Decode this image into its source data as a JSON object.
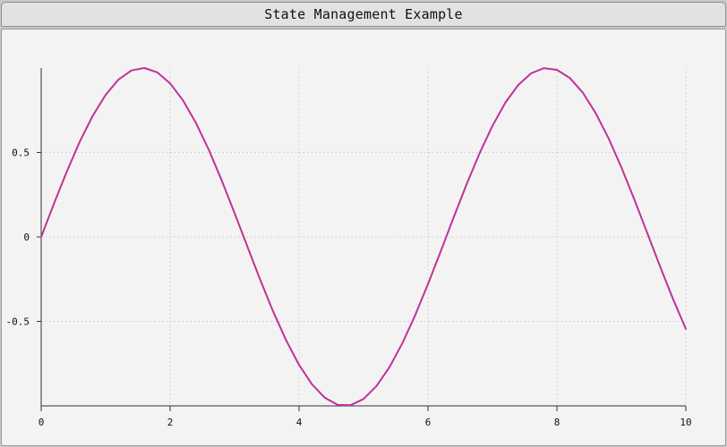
{
  "window": {
    "title": "State Management Example"
  },
  "chart_data": {
    "type": "line",
    "title": "",
    "xlabel": "",
    "ylabel": "",
    "xlim": [
      0,
      10
    ],
    "ylim": [
      -1,
      1
    ],
    "xticks": [
      0,
      2,
      4,
      6,
      8,
      10
    ],
    "xtick_labels": [
      "0",
      "2",
      "4",
      "6",
      "8",
      "10"
    ],
    "yticks": [
      -0.5,
      0,
      0.5
    ],
    "ytick_labels": [
      "-0.5",
      "0",
      "0.5"
    ],
    "grid": true,
    "series": [
      {
        "color": "#c03296",
        "x": [
          0,
          0.2,
          0.4,
          0.6,
          0.8,
          1.0,
          1.2,
          1.4,
          1.6,
          1.8,
          2.0,
          2.2,
          2.4,
          2.6,
          2.8,
          3.0,
          3.2,
          3.4,
          3.6,
          3.8,
          4.0,
          4.2,
          4.4,
          4.6,
          4.8,
          5.0,
          5.2,
          5.4,
          5.6,
          5.8,
          6.0,
          6.2,
          6.4,
          6.6,
          6.8,
          7.0,
          7.2,
          7.4,
          7.6,
          7.8,
          8.0,
          8.2,
          8.4,
          8.6,
          8.8,
          9.0,
          9.2,
          9.4,
          9.6,
          9.8,
          10.0
        ],
        "y": [
          0,
          0.199,
          0.389,
          0.565,
          0.717,
          0.841,
          0.932,
          0.985,
          1.0,
          0.974,
          0.909,
          0.808,
          0.675,
          0.516,
          0.335,
          0.141,
          -0.058,
          -0.256,
          -0.443,
          -0.612,
          -0.757,
          -0.872,
          -0.952,
          -0.994,
          -0.996,
          -0.959,
          -0.883,
          -0.773,
          -0.631,
          -0.465,
          -0.279,
          -0.083,
          0.117,
          0.312,
          0.494,
          0.657,
          0.794,
          0.899,
          0.968,
          0.999,
          0.989,
          0.941,
          0.855,
          0.734,
          0.585,
          0.412,
          0.223,
          0.025,
          -0.174,
          -0.366,
          -0.544
        ]
      }
    ]
  }
}
